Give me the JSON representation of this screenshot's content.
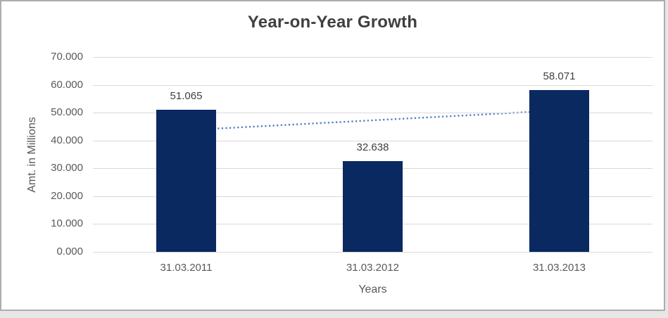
{
  "chart_data": {
    "type": "bar",
    "title": "Year-on-Year Growth",
    "categories": [
      "31.03.2011",
      "31.03.2012",
      "31.03.2013"
    ],
    "values": [
      51.065,
      32.638,
      58.071
    ],
    "data_labels": [
      "51.065",
      "32.638",
      "58.071"
    ],
    "xlabel": "Years",
    "ylabel": "Amt. in Millions",
    "ylim": [
      0,
      70
    ],
    "ytick_step": 10,
    "ytick_labels": [
      "0.000",
      "10.000",
      "20.000",
      "30.000",
      "40.000",
      "50.000",
      "60.000",
      "70.000"
    ],
    "grid": true,
    "legend_position": "none",
    "bar_color": "#0A2961",
    "trendline": {
      "type": "linear",
      "style": "dotted",
      "color": "#4F81BD",
      "start_value": 43.7,
      "end_value": 50.8,
      "spans": "first bar center to last bar center"
    },
    "colors": {
      "title_text": "#3F3F3F",
      "axis_text": "#595959",
      "data_label_text": "#404040",
      "gridline": "#D9D9D9",
      "chart_border": "#ADADAD",
      "plot_background": "#FFFFFF",
      "outer_background": "#E7E7E7"
    }
  }
}
